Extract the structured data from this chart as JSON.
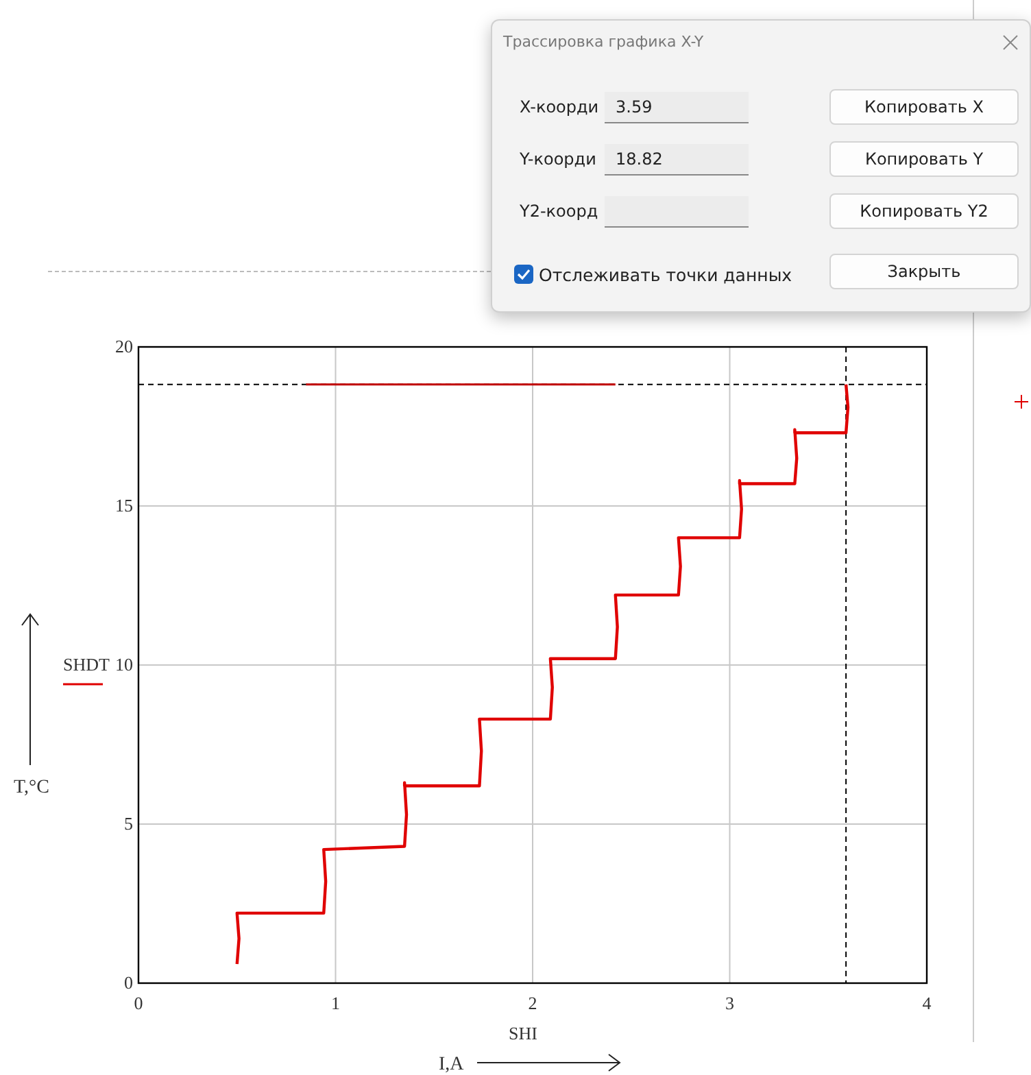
{
  "chart_data": [
    {
      "type": "line",
      "xlabel": "SHI",
      "xlim": [
        0,
        4
      ],
      "xticks": [
        0,
        1,
        2,
        3,
        4
      ],
      "ylim": [
        0,
        20
      ],
      "yticks": [
        0,
        5,
        10,
        15,
        20
      ],
      "grid": true,
      "legend": "left",
      "line_style": "solid",
      "series": [
        {
          "name": "SHDT",
          "color": "#e00000",
          "x": [
            0.5,
            0.51,
            0.5,
            0.5,
            0.94,
            0.95,
            0.94,
            0.94,
            1.35,
            1.36,
            1.35,
            1.35,
            1.73,
            1.74,
            1.73,
            1.73,
            2.09,
            2.1,
            2.09,
            2.09,
            2.42,
            2.43,
            2.42,
            2.42,
            2.74,
            2.75,
            2.74,
            2.74,
            3.05,
            3.06,
            3.05,
            3.05,
            3.33,
            3.34,
            3.33,
            3.33,
            3.59,
            3.6,
            3.59
          ],
          "values": [
            0.6,
            1.4,
            2.2,
            2.2,
            2.2,
            3.2,
            4.2,
            4.2,
            4.3,
            5.3,
            6.3,
            6.2,
            6.2,
            7.3,
            8.3,
            8.3,
            8.3,
            9.3,
            10.2,
            10.2,
            10.2,
            11.2,
            12.2,
            12.2,
            12.2,
            13.1,
            14.0,
            14.0,
            14.0,
            14.9,
            15.8,
            15.7,
            15.7,
            16.5,
            17.4,
            17.3,
            17.3,
            18.1,
            18.82
          ]
        },
        {
          "color": "#c00000",
          "x": [
            0.85,
            2.42
          ],
          "values": [
            18.82,
            18.82
          ]
        }
      ],
      "ref_lines": [
        {
          "axis": "x",
          "value": 3.59,
          "color": "#000000",
          "line_style": "dashed"
        },
        {
          "axis": "y",
          "value": 18.82,
          "color": "#000000",
          "line_style": "dashed"
        }
      ],
      "annotations": [
        "T,°C",
        "I,A"
      ]
    },
    {
      "type": "other",
      "title": "Трассировка графика X-Y",
      "annotations": [
        "X-коорди",
        "3.59",
        "Копировать X",
        "Y-коорди",
        "18.82",
        "Копировать Y",
        "Y2-коорд",
        "Копировать Y2",
        "Отслеживать точки данных",
        "Закрыть"
      ]
    }
  ]
}
